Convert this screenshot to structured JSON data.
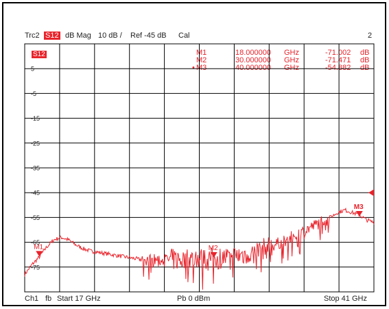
{
  "header": {
    "trace": "Trc2",
    "param": "S12",
    "format": "dB Mag",
    "scale": "10 dB /",
    "ref": "Ref -45 dB",
    "cal": "Cal",
    "window_number": "2"
  },
  "trace_tag": "S12",
  "markers_table": [
    {
      "name": "M1",
      "freq": "18.000000",
      "funit": "GHz",
      "value": "-71.002",
      "vunit": "dB",
      "active": false
    },
    {
      "name": "M2",
      "freq": "30.000000",
      "funit": "GHz",
      "value": "-71.471",
      "vunit": "dB",
      "active": false
    },
    {
      "name": "M3",
      "freq": "40.000000",
      "funit": "GHz",
      "value": "-54.882",
      "vunit": "dB",
      "active": true
    }
  ],
  "y_ticks": [
    "5",
    "-5",
    "-15",
    "-25",
    "-35",
    "-45",
    "-55",
    "-65",
    "-75"
  ],
  "footer": {
    "channel": "Ch1",
    "fb": "fb",
    "start": "Start  17 GHz",
    "power": "Pb  0 dBm",
    "stop": "Stop  41 GHz"
  },
  "colors": {
    "trace": "#e8232b",
    "grid": "#000000",
    "background": "#ffffff"
  },
  "chart_data": {
    "type": "line",
    "xlim": [
      17,
      41
    ],
    "ylim": [
      -85,
      15
    ],
    "x_unit": "GHz",
    "y_unit": "dB",
    "reference_level": -45,
    "series": [
      {
        "name": "Trc2",
        "x": [
          17,
          17.5,
          18,
          18.5,
          19,
          19.5,
          20,
          20.5,
          21,
          21.5,
          22,
          23,
          24,
          25,
          26,
          27,
          28,
          29,
          30,
          31,
          32,
          33,
          34,
          35,
          36,
          37,
          37.5,
          38,
          38.5,
          39,
          39.5,
          40,
          40.5,
          41
        ],
        "y": [
          -78,
          -74,
          -71,
          -67,
          -64,
          -63,
          -64,
          -66,
          -67.5,
          -68.5,
          -69,
          -70,
          -71,
          -72,
          -72,
          -72,
          -72,
          -71.5,
          -71.5,
          -71,
          -70,
          -68.5,
          -66.5,
          -64,
          -61,
          -58,
          -56,
          -55,
          -53,
          -52,
          -53,
          -54,
          -56,
          -57
        ]
      }
    ],
    "markers": [
      {
        "name": "M1",
        "x": 18,
        "y": -71.002
      },
      {
        "name": "M2",
        "x": 30,
        "y": -71.471
      },
      {
        "name": "M3",
        "x": 40,
        "y": -54.882
      }
    ]
  }
}
